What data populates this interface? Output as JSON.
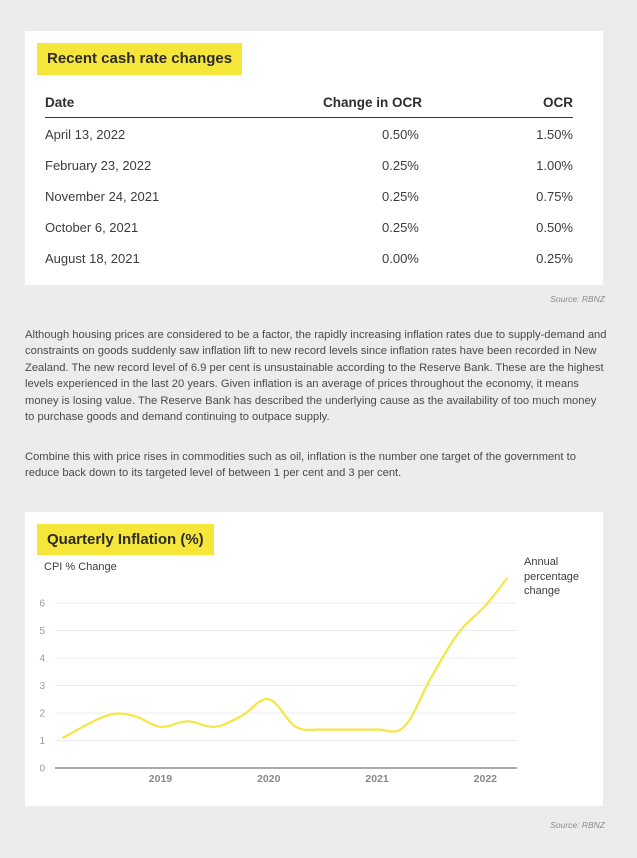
{
  "table_section": {
    "title": "Recent cash rate changes",
    "headers": {
      "date": "Date",
      "change": "Change in OCR",
      "ocr": "OCR"
    },
    "rows": [
      {
        "date": "April 13, 2022",
        "change": "0.50%",
        "ocr": "1.50%"
      },
      {
        "date": "February 23, 2022",
        "change": "0.25%",
        "ocr": "1.00%"
      },
      {
        "date": "November 24, 2021",
        "change": "0.25%",
        "ocr": "0.75%"
      },
      {
        "date": "October 6, 2021",
        "change": "0.25%",
        "ocr": "0.50%"
      },
      {
        "date": "August 18, 2021",
        "change": "0.00%",
        "ocr": "0.25%"
      }
    ],
    "source": "Source: RBNZ"
  },
  "body": {
    "paragraph1": "Although housing prices are considered to be a factor, the rapidly increasing inflation rates due to supply-demand and constraints on goods suddenly saw inflation lift to new record levels since inflation rates have been recorded in New Zealand. The new record level of 6.9 per cent is unsustainable according to the Reserve Bank. These are the highest levels experienced in the last 20 years. Given inflation is an average of prices throughout the economy, it means money is losing value. The Reserve Bank has described the underlying cause as the availability of too much money to purchase goods and demand continuing to outpace supply.",
    "paragraph2": "Combine this with price rises in commodities such as oil, inflation is the number one target of the government to reduce back down to its targeted level of between 1 per cent and 3 per cent."
  },
  "chart_section": {
    "source": "Source: RBNZ",
    "annotation": [
      "Annual",
      "percentage",
      "change"
    ]
  },
  "chart_data": {
    "type": "line",
    "title": "Quarterly Inflation (%)",
    "ylabel": "CPI % Change",
    "ylim": [
      0,
      6.5
    ],
    "yticks": [
      "0",
      "1",
      "2",
      "3",
      "4",
      "5",
      "6"
    ],
    "xticks": [
      "2019",
      "2020",
      "2021",
      "2022"
    ],
    "xlim": [
      2018.1,
      2022.25
    ],
    "grid": true,
    "line_color": "#f5e642",
    "series": [
      {
        "x": [
          2018.1,
          2018.5,
          2018.75,
          2019.0,
          2019.25,
          2019.5,
          2019.75,
          2020.0,
          2020.25,
          2020.5,
          2020.75,
          2021.0,
          2021.25,
          2021.5,
          2021.75,
          2022.0,
          2022.2
        ],
        "values": [
          1.1,
          1.9,
          1.9,
          1.5,
          1.7,
          1.5,
          1.9,
          2.5,
          1.5,
          1.4,
          1.4,
          1.4,
          1.5,
          3.3,
          4.9,
          5.9,
          6.9
        ]
      }
    ]
  }
}
